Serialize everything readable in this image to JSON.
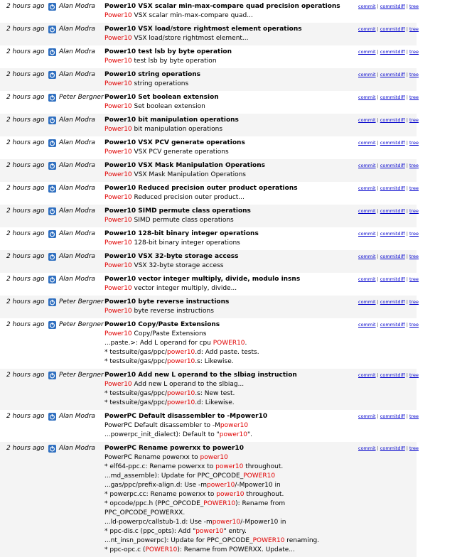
{
  "link_separator": "|",
  "rows": [
    {
      "age": "2 hours ago",
      "author": "Alan Modra",
      "title": "Power10 VSX scalar min-max-compare quad precision operations",
      "lines": [
        [
          {
            "match": "Power10"
          },
          " VSX scalar min-max-compare quad..."
        ]
      ],
      "links": [
        "commit",
        "commitdiff",
        "tree"
      ]
    },
    {
      "age": "2 hours ago",
      "author": "Alan Modra",
      "title": "Power10 VSX load/store rightmost element operations",
      "lines": [
        [
          {
            "match": "Power10"
          },
          " VSX load/store rightmost element..."
        ]
      ],
      "links": [
        "commit",
        "commitdiff",
        "tree"
      ]
    },
    {
      "age": "2 hours ago",
      "author": "Alan Modra",
      "title": "Power10 test lsb by byte operation",
      "lines": [
        [
          {
            "match": "Power10"
          },
          " test lsb by byte operation"
        ]
      ],
      "links": [
        "commit",
        "commitdiff",
        "tree"
      ]
    },
    {
      "age": "2 hours ago",
      "author": "Alan Modra",
      "title": "Power10 string operations",
      "lines": [
        [
          {
            "match": "Power10"
          },
          " string operations"
        ]
      ],
      "links": [
        "commit",
        "commitdiff",
        "tree"
      ]
    },
    {
      "age": "2 hours ago",
      "author": "Peter Bergner",
      "title": "Power10 Set boolean extension",
      "lines": [
        [
          {
            "match": "Power10"
          },
          " Set boolean extension"
        ]
      ],
      "links": [
        "commit",
        "commitdiff",
        "tree"
      ]
    },
    {
      "age": "2 hours ago",
      "author": "Alan Modra",
      "title": "Power10 bit manipulation operations",
      "lines": [
        [
          {
            "match": "Power10"
          },
          " bit manipulation operations"
        ]
      ],
      "links": [
        "commit",
        "commitdiff",
        "tree"
      ]
    },
    {
      "age": "2 hours ago",
      "author": "Alan Modra",
      "title": "Power10 VSX PCV generate operations",
      "lines": [
        [
          {
            "match": "Power10"
          },
          " VSX PCV generate operations"
        ]
      ],
      "links": [
        "commit",
        "commitdiff",
        "tree"
      ]
    },
    {
      "age": "2 hours ago",
      "author": "Alan Modra",
      "title": "Power10 VSX Mask Manipulation Operations",
      "lines": [
        [
          {
            "match": "Power10"
          },
          " VSX Mask Manipulation Operations"
        ]
      ],
      "links": [
        "commit",
        "commitdiff",
        "tree"
      ]
    },
    {
      "age": "2 hours ago",
      "author": "Alan Modra",
      "title": "Power10 Reduced precision outer product operations",
      "lines": [
        [
          {
            "match": "Power10"
          },
          " Reduced precision outer product..."
        ]
      ],
      "links": [
        "commit",
        "commitdiff",
        "tree"
      ]
    },
    {
      "age": "2 hours ago",
      "author": "Alan Modra",
      "title": "Power10 SIMD permute class operations",
      "lines": [
        [
          {
            "match": "Power10"
          },
          " SIMD permute class operations"
        ]
      ],
      "links": [
        "commit",
        "commitdiff",
        "tree"
      ]
    },
    {
      "age": "2 hours ago",
      "author": "Alan Modra",
      "title": "Power10 128-bit binary integer operations",
      "lines": [
        [
          {
            "match": "Power10"
          },
          " 128-bit binary integer operations"
        ]
      ],
      "links": [
        "commit",
        "commitdiff",
        "tree"
      ]
    },
    {
      "age": "2 hours ago",
      "author": "Alan Modra",
      "title": "Power10 VSX 32-byte storage access",
      "lines": [
        [
          {
            "match": "Power10"
          },
          " VSX 32-byte storage access"
        ]
      ],
      "links": [
        "commit",
        "commitdiff",
        "tree"
      ]
    },
    {
      "age": "2 hours ago",
      "author": "Alan Modra",
      "title": "Power10 vector integer multiply, divide, modulo insns",
      "lines": [
        [
          {
            "match": "Power10"
          },
          " vector integer multiply, divide..."
        ]
      ],
      "links": [
        "commit",
        "commitdiff",
        "tree"
      ]
    },
    {
      "age": "2 hours ago",
      "author": "Peter Bergner",
      "title": "Power10 byte reverse instructions",
      "lines": [
        [
          {
            "match": "Power10"
          },
          " byte reverse instructions"
        ]
      ],
      "links": [
        "commit",
        "commitdiff",
        "tree"
      ]
    },
    {
      "age": "2 hours ago",
      "author": "Peter Bergner",
      "title": "Power10 Copy/Paste Extensions",
      "lines": [
        [
          {
            "match": "Power10"
          },
          " Copy/Paste Extensions"
        ],
        [
          "...paste.>: Add L operand for cpu ",
          {
            "match": "POWER10"
          },
          "."
        ],
        [
          "* testsuite/gas/ppc/",
          {
            "match": "power10"
          },
          ".d: Add paste. tests."
        ],
        [
          "* testsuite/gas/ppc/",
          {
            "match": "power10"
          },
          ".s: Likewise."
        ]
      ],
      "links": [
        "commit",
        "commitdiff",
        "tree"
      ]
    },
    {
      "age": "2 hours ago",
      "author": "Peter Bergner",
      "title": "Power10 Add new L operand to the slbiag instruction",
      "lines": [
        [
          {
            "match": "Power10"
          },
          " Add new L operand to the slbiag..."
        ],
        [
          "* testsuite/gas/ppc/",
          {
            "match": "power10"
          },
          ".s: New test."
        ],
        [
          "* testsuite/gas/ppc/",
          {
            "match": "power10"
          },
          ".d: Likewise."
        ]
      ],
      "links": [
        "commit",
        "commitdiff",
        "tree"
      ]
    },
    {
      "age": "2 hours ago",
      "author": "Alan Modra",
      "title": "PowerPC Default disassembler to -Mpower10",
      "lines": [
        [
          "PowerPC Default disassembler to -M",
          {
            "match": "power10"
          }
        ],
        [
          "...powerpc_init_dialect): Default to \"",
          {
            "match": "power10"
          },
          "\"."
        ]
      ],
      "links": [
        "commit",
        "commitdiff",
        "tree"
      ]
    },
    {
      "age": "2 hours ago",
      "author": "Alan Modra",
      "title": "PowerPC Rename powerxx to power10",
      "lines": [
        [
          "PowerPC Rename powerxx to ",
          {
            "match": "power10"
          }
        ],
        [
          "* elf64-ppc.c: Rename powerxx to ",
          {
            "match": "power10"
          },
          " throughout."
        ],
        [
          "...md_assemble): Update for PPC_OPCODE_",
          {
            "match": "POWER10"
          }
        ],
        [
          "...gas/ppc/prefix-align.d: Use -m",
          {
            "match": "power10"
          },
          "/-Mpower10 in"
        ],
        [
          "* powerpc.cc: Rename powerxx to ",
          {
            "match": "power10"
          },
          " throughout."
        ],
        [
          "* opcode/ppc.h (PPC_OPCODE_",
          {
            "match": "POWER10"
          },
          "): Rename from PPC_OPCODE_POWERXX."
        ],
        [
          "...ld-powerpc/callstub-1.d: Use -m",
          {
            "match": "power10"
          },
          "/-Mpower10 in"
        ],
        [
          "* ppc-dis.c (ppc_opts): Add \"",
          {
            "match": "power10"
          },
          "\" entry."
        ],
        [
          "...nt_insn_powerpc): Update for PPC_OPCODE_",
          {
            "match": "POWER10"
          },
          " renaming."
        ],
        [
          "* ppc-opc.c (",
          {
            "match": "POWER10"
          },
          "): Rename from POWERXX. Update..."
        ]
      ],
      "links": [
        "commit",
        "commitdiff",
        "tree"
      ]
    }
  ]
}
